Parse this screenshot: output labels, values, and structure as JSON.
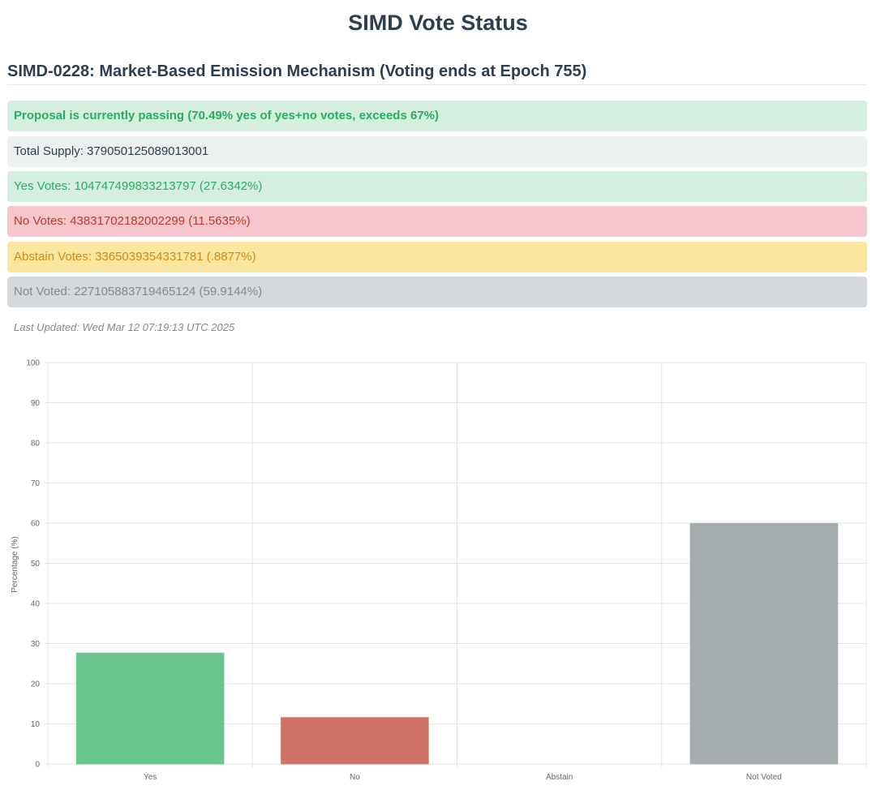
{
  "page": {
    "title": "SIMD Vote Status"
  },
  "proposal": {
    "title": "SIMD-0228: Market-Based Emission Mechanism (Voting ends at Epoch 755)",
    "status_message": "Proposal is currently passing (70.49% yes of yes+no votes, exceeds 67%)",
    "total_supply": "Total Supply: 379050125089013001",
    "yes_votes": "Yes Votes: 104747499833213797 (27.6342%)",
    "no_votes": "No Votes: 43831702182002299 (11.5635%)",
    "abstain_votes": "Abstain Votes: 3365039354331781 (.8877%)",
    "not_voted": "Not Voted: 227105883719465124 (59.9144%)",
    "last_updated": "Last Updated: Wed Mar 12 07:19:13 UTC 2025"
  },
  "colors": {
    "yes": "#66c68d",
    "no": "#d07366",
    "abstain": "#f5d76e",
    "not_voted": "#a5acad"
  },
  "chart_data": {
    "type": "bar",
    "categories": [
      "Yes",
      "No",
      "Abstain",
      "Not Voted"
    ],
    "values": [
      27.6342,
      11.5635,
      0.8877,
      59.9144
    ],
    "colors": [
      "#66c68d",
      "#d07366",
      "#f5d76e",
      "#a5acad"
    ],
    "title": "",
    "xlabel": "",
    "ylabel": "Percentage (%)",
    "ylim": [
      0,
      100
    ],
    "yticks": [
      "0",
      "10",
      "20",
      "30",
      "40",
      "50",
      "60",
      "70",
      "80",
      "90",
      "100"
    ],
    "grid": true
  }
}
